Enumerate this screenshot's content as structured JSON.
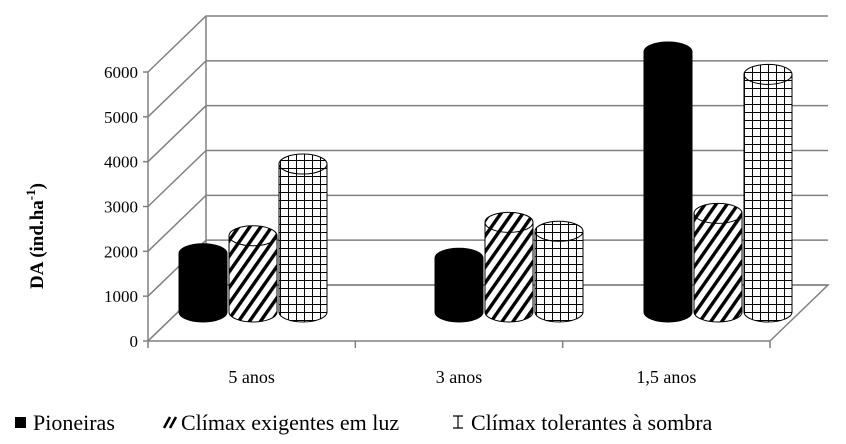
{
  "chart_data": {
    "type": "bar",
    "style": "3d-cylinder",
    "title": "",
    "xlabel": "",
    "ylabel": "DA (ind.ha",
    "ylabel_superscript": "-1",
    "ylabel_close": ")",
    "ylim": [
      0,
      6000
    ],
    "yticks": [
      0,
      1000,
      2000,
      3000,
      4000,
      5000,
      6000
    ],
    "ytick_labels": [
      "0",
      "1000",
      "2000",
      "3000",
      "4000",
      "5000",
      "6000"
    ],
    "grid": true,
    "legend_position": "bottom",
    "categories": [
      "5 anos",
      "3 anos",
      "1,5 anos"
    ],
    "series": [
      {
        "name": "Pioneiras",
        "pattern": "solid-black",
        "values": [
          1300,
          1200,
          5800
        ]
      },
      {
        "name": "Clímax exigentes em luz",
        "pattern": "diagonal-hatch",
        "values": [
          1700,
          2000,
          2200
        ]
      },
      {
        "name": "Clímax tolerantes à sombra",
        "pattern": "grid-hatch",
        "values": [
          3300,
          1800,
          5300
        ]
      }
    ]
  }
}
